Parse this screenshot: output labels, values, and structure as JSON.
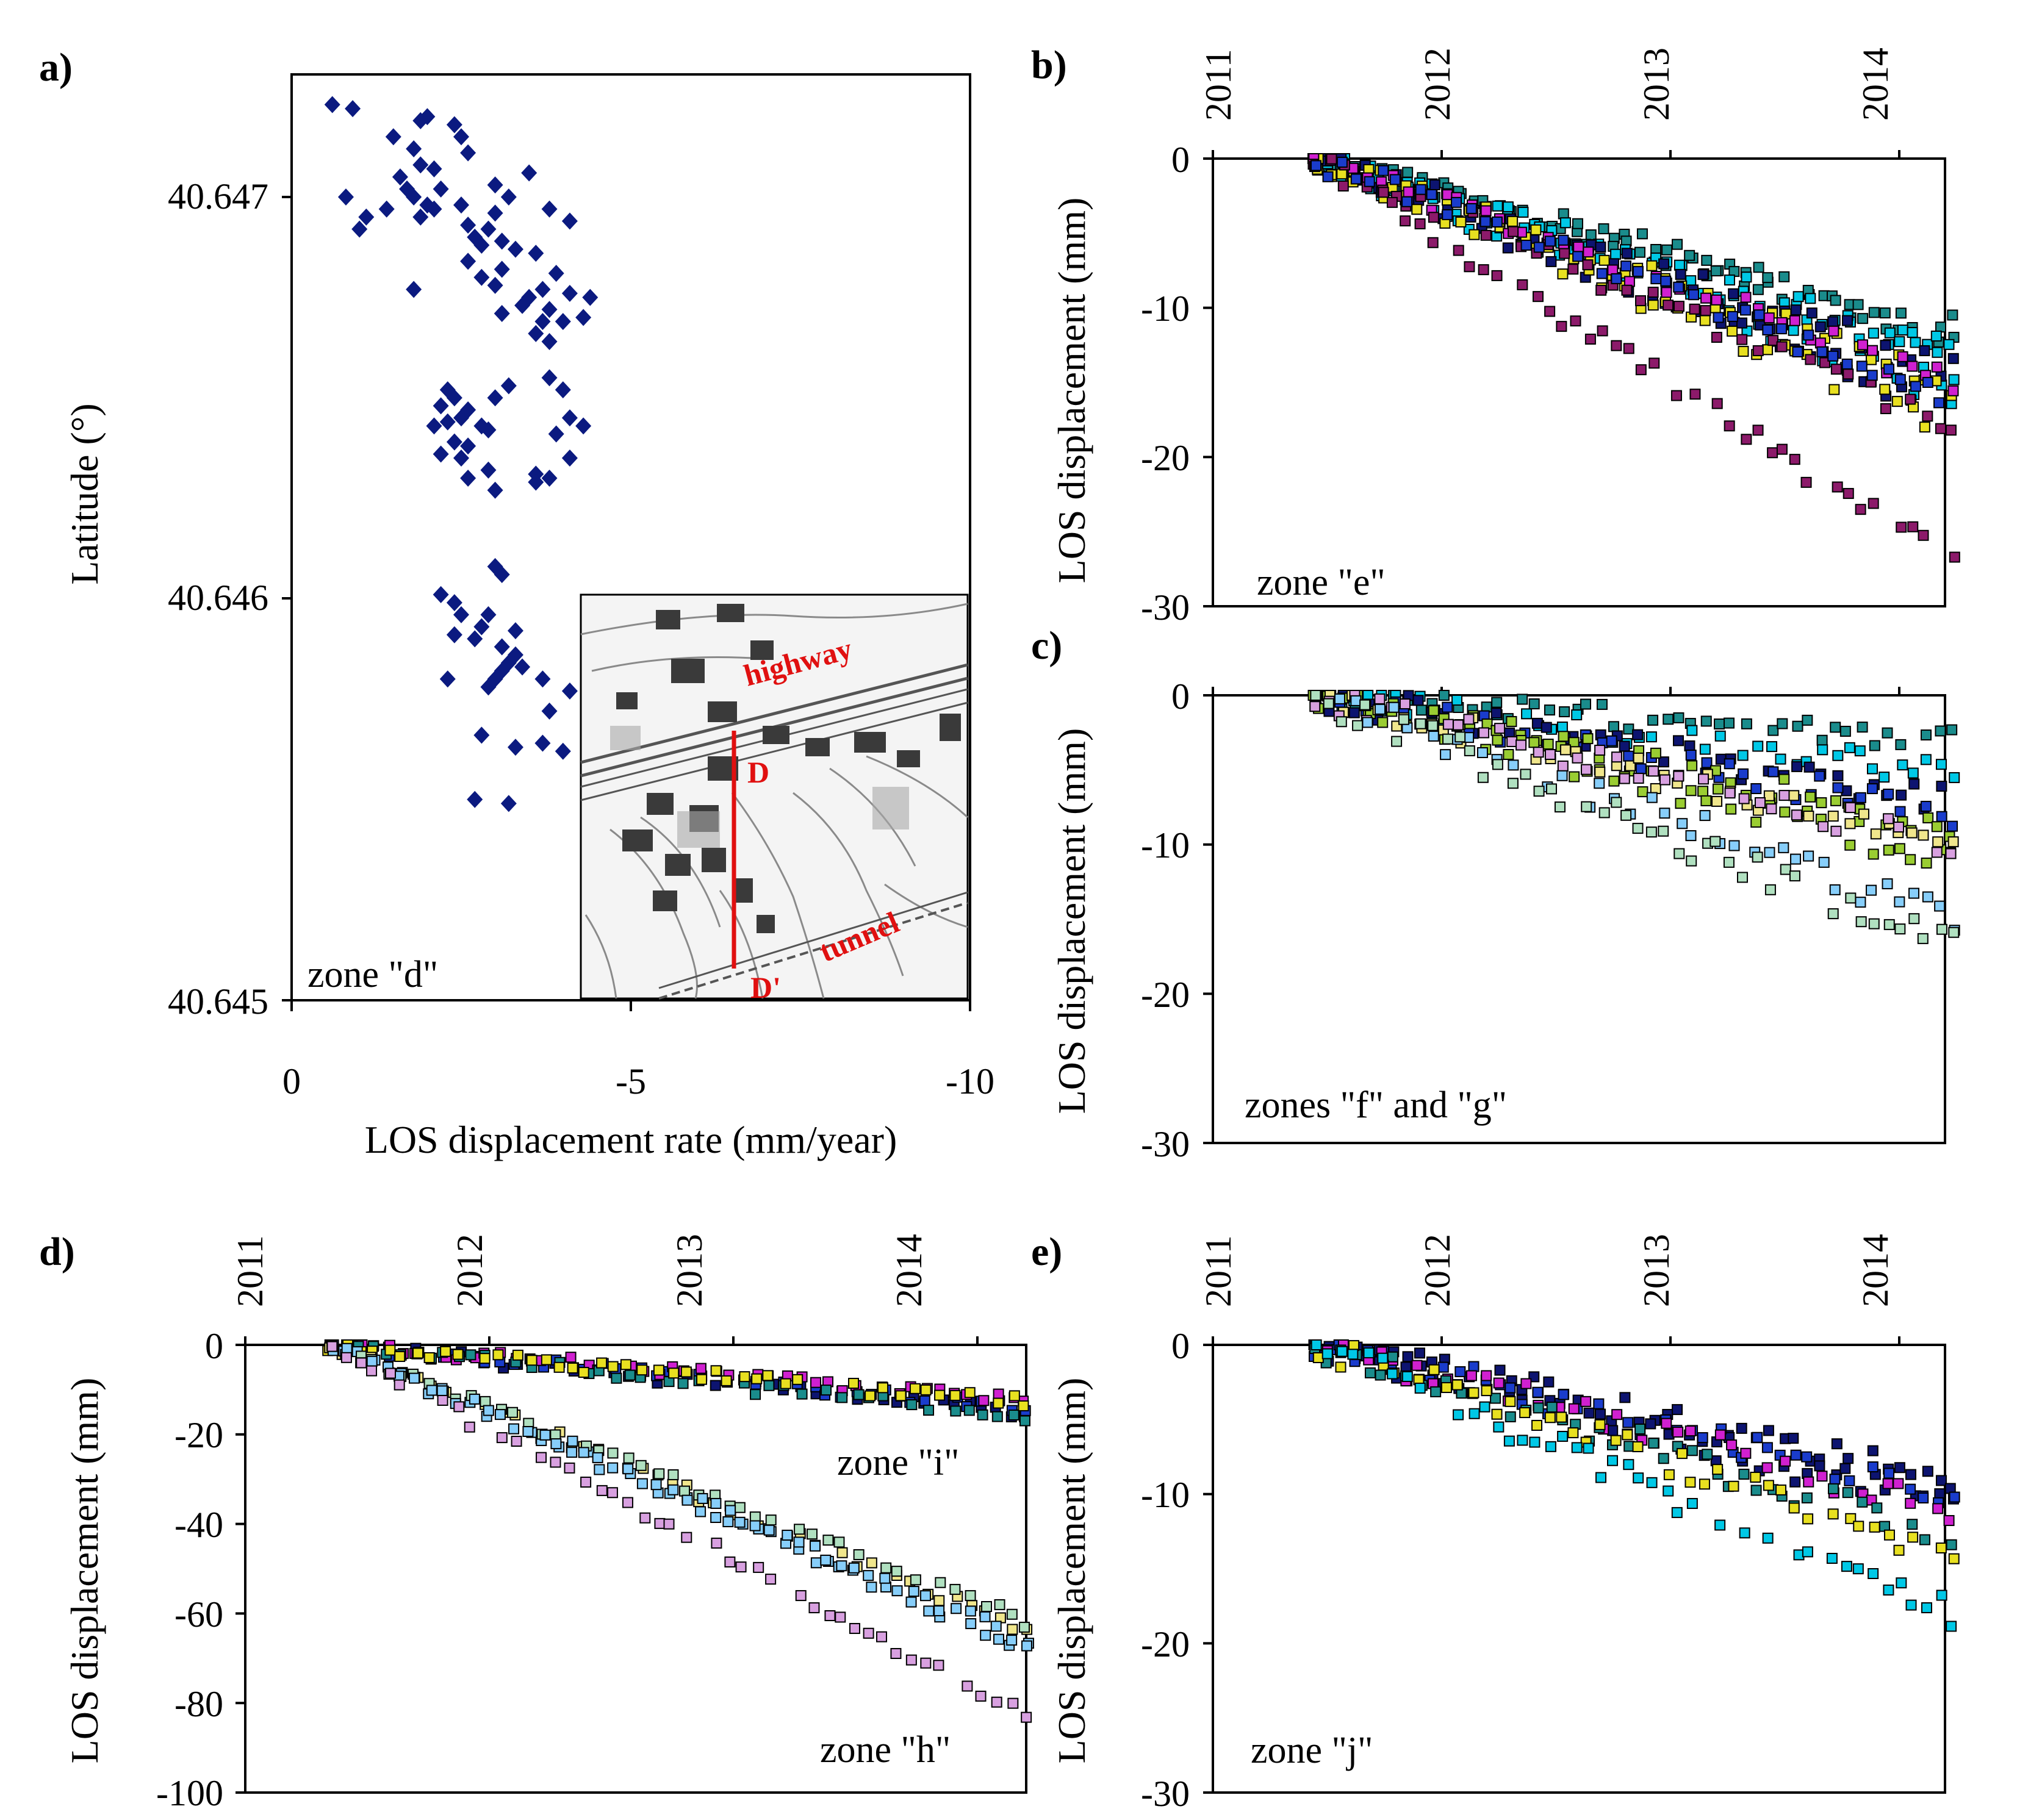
{
  "chart_data": [
    {
      "id": "a",
      "panel_label": "a)",
      "type": "scatter",
      "xlabel": "LOS displacement rate (mm/year)",
      "ylabel": "Latitude (°)",
      "xlim": [
        0,
        -10
      ],
      "ylim": [
        40.645,
        40.6472
      ],
      "xticks": [
        "0",
        "-5",
        "-10"
      ],
      "yticks": [
        "40.645",
        "40.646",
        "40.647"
      ],
      "zone_label": "zone \"d\"",
      "marker": "diamond",
      "color": "#0b1a80",
      "inset": {
        "labels": [
          "highway",
          "D",
          "tunnel",
          "D'"
        ],
        "section_color": "#e01010"
      },
      "points": [
        [
          -0.6,
          40.64723
        ],
        [
          -0.9,
          40.64722
        ],
        [
          -2.0,
          40.6472
        ],
        [
          -1.9,
          40.64719
        ],
        [
          -2.4,
          40.64718
        ],
        [
          -1.5,
          40.64715
        ],
        [
          -2.5,
          40.64715
        ],
        [
          -1.8,
          40.64712
        ],
        [
          -2.6,
          40.64711
        ],
        [
          -1.9,
          40.64708
        ],
        [
          -2.1,
          40.64707
        ],
        [
          -1.6,
          40.64705
        ],
        [
          -3.5,
          40.64706
        ],
        [
          -1.7,
          40.64702
        ],
        [
          -2.2,
          40.64702
        ],
        [
          -3.0,
          40.64703
        ],
        [
          -0.8,
          40.647
        ],
        [
          -1.8,
          40.647
        ],
        [
          -2.0,
          40.64698
        ],
        [
          -3.2,
          40.647
        ],
        [
          -1.4,
          40.64697
        ],
        [
          -2.1,
          40.64697
        ],
        [
          -1.9,
          40.64695
        ],
        [
          -2.5,
          40.64698
        ],
        [
          -3.0,
          40.64696
        ],
        [
          -1.1,
          40.64695
        ],
        [
          -3.8,
          40.64697
        ],
        [
          -2.6,
          40.64693
        ],
        [
          -2.9,
          40.64692
        ],
        [
          -4.1,
          40.64694
        ],
        [
          -1.0,
          40.64692
        ],
        [
          -2.7,
          40.6469
        ],
        [
          -3.1,
          40.64689
        ],
        [
          -2.8,
          40.64688
        ],
        [
          -3.3,
          40.64687
        ],
        [
          -3.6,
          40.64686
        ],
        [
          -2.6,
          40.64684
        ],
        [
          -3.1,
          40.64682
        ],
        [
          -3.9,
          40.64681
        ],
        [
          -2.8,
          40.6468
        ],
        [
          -3.0,
          40.64678
        ],
        [
          -1.8,
          40.64677
        ],
        [
          -3.7,
          40.64677
        ],
        [
          -4.1,
          40.64676
        ],
        [
          -3.5,
          40.64675
        ],
        [
          -4.4,
          40.64675
        ],
        [
          -3.4,
          40.64673
        ],
        [
          -3.8,
          40.64672
        ],
        [
          -3.1,
          40.64671
        ],
        [
          -3.7,
          40.64669
        ],
        [
          -4.0,
          40.64669
        ],
        [
          -3.6,
          40.64666
        ],
        [
          -3.8,
          40.64664
        ],
        [
          -4.3,
          40.6467
        ],
        [
          -3.2,
          40.64653
        ],
        [
          -3.8,
          40.64655
        ],
        [
          -2.3,
          40.64652
        ],
        [
          -4.0,
          40.64652
        ],
        [
          -2.4,
          40.6465
        ],
        [
          -3.0,
          40.6465
        ],
        [
          -2.2,
          40.64648
        ],
        [
          -2.6,
          40.64647
        ],
        [
          -2.5,
          40.64645
        ],
        [
          -4.1,
          40.64645
        ],
        [
          -2.3,
          40.64644
        ],
        [
          -2.1,
          40.64643
        ],
        [
          -2.8,
          40.64643
        ],
        [
          -4.3,
          40.64643
        ],
        [
          -2.9,
          40.64642
        ],
        [
          -3.9,
          40.64641
        ],
        [
          -2.4,
          40.64639
        ],
        [
          -2.6,
          40.64638
        ],
        [
          -2.2,
          40.64636
        ],
        [
          -2.5,
          40.64635
        ],
        [
          -4.1,
          40.64635
        ],
        [
          -2.9,
          40.64632
        ],
        [
          -3.6,
          40.64631
        ],
        [
          -2.6,
          40.6463
        ],
        [
          -3.8,
          40.6463
        ],
        [
          -3.0,
          40.64627
        ],
        [
          -3.6,
          40.64629
        ],
        [
          -3.0,
          40.64608
        ],
        [
          -3.1,
          40.64606
        ],
        [
          -2.2,
          40.64601
        ],
        [
          -2.4,
          40.64599
        ],
        [
          -2.5,
          40.64596
        ],
        [
          -2.9,
          40.64596
        ],
        [
          -2.8,
          40.64593
        ],
        [
          -2.4,
          40.64591
        ],
        [
          -3.3,
          40.64592
        ],
        [
          -2.7,
          40.6459
        ],
        [
          -3.1,
          40.64588
        ],
        [
          -3.3,
          40.64586
        ],
        [
          -3.2,
          40.64584
        ],
        [
          -3.1,
          40.64582
        ],
        [
          -2.3,
          40.6458
        ],
        [
          -3.0,
          40.6458
        ],
        [
          -3.4,
          40.64583
        ],
        [
          -3.7,
          40.6458
        ],
        [
          -2.9,
          40.64578
        ],
        [
          -4.1,
          40.64577
        ],
        [
          -3.8,
          40.64572
        ],
        [
          -2.8,
          40.64566
        ],
        [
          -3.7,
          40.64564
        ],
        [
          -3.3,
          40.64563
        ],
        [
          -4.0,
          40.64562
        ],
        [
          -2.7,
          40.6455
        ],
        [
          -3.2,
          40.64549
        ]
      ]
    },
    {
      "id": "b",
      "panel_label": "b)",
      "type": "scatter",
      "ylabel": "LOS displacement (mm)",
      "xlim": [
        2011,
        2014.2
      ],
      "ylim": [
        -30,
        0
      ],
      "xticks": [
        "2011",
        "2012",
        "2013",
        "2014"
      ],
      "yticks": [
        "0",
        "-10",
        "-20",
        "-30"
      ],
      "zone_label": "zone \"e\"",
      "marker": "square",
      "series_colors": [
        "#0d1470",
        "#00c8e6",
        "#1a8c8c",
        "#e8e020",
        "#d020d0",
        "#8c1a6a",
        "#1a3ccc"
      ],
      "n_dates": 50,
      "date_start": 2011.45,
      "date_end": 2014.23,
      "groups": [
        {
          "color_index": 2,
          "final": -11,
          "noise": 0.7
        },
        {
          "color_index": 2,
          "final": -12,
          "noise": 0.7
        },
        {
          "color_index": 1,
          "final": -14,
          "noise": 0.9
        },
        {
          "color_index": 1,
          "final": -16,
          "noise": 0.9
        },
        {
          "color_index": 1,
          "final": -13,
          "noise": 0.9
        },
        {
          "color_index": 0,
          "final": -17,
          "noise": 0.9
        },
        {
          "color_index": 0,
          "final": -14,
          "noise": 0.9
        },
        {
          "color_index": 3,
          "final": -15,
          "noise": 0.9
        },
        {
          "color_index": 3,
          "final": -18,
          "noise": 0.9
        },
        {
          "color_index": 4,
          "final": -15,
          "noise": 0.9
        },
        {
          "color_index": 5,
          "final": -18,
          "noise": 0.9
        },
        {
          "color_index": 5,
          "final": -27,
          "noise": 0.8
        },
        {
          "color_index": 6,
          "final": -16,
          "noise": 0.9
        }
      ]
    },
    {
      "id": "c",
      "panel_label": "c)",
      "type": "scatter",
      "ylabel": "LOS displacement (mm)",
      "xlim": [
        2011,
        2014.2
      ],
      "ylim": [
        -30,
        0
      ],
      "yticks": [
        "0",
        "-10",
        "-20",
        "-30"
      ],
      "zone_label": "zones \"f\" and \"g\"",
      "marker": "square",
      "series_colors": [
        "#0d1470",
        "#1a3ccc",
        "#00c8e6",
        "#1a8c8c",
        "#9acd32",
        "#f0e68c",
        "#d8a0e0",
        "#87cefa",
        "#b0e0c0"
      ],
      "n_dates": 50,
      "date_start": 2011.45,
      "date_end": 2014.23,
      "groups": [
        {
          "color_index": 3,
          "final": -3,
          "noise": 0.8
        },
        {
          "color_index": 2,
          "final": -5,
          "noise": 1.0
        },
        {
          "color_index": 0,
          "final": -7,
          "noise": 1.0
        },
        {
          "color_index": 1,
          "final": -8,
          "noise": 1.0
        },
        {
          "color_index": 4,
          "final": -9,
          "noise": 1.0
        },
        {
          "color_index": 4,
          "final": -11,
          "noise": 1.0
        },
        {
          "color_index": 5,
          "final": -10,
          "noise": 1.0
        },
        {
          "color_index": 6,
          "final": -10,
          "noise": 1.0
        },
        {
          "color_index": 7,
          "final": -15,
          "noise": 1.2
        },
        {
          "color_index": 8,
          "final": -17,
          "noise": 1.2
        }
      ]
    },
    {
      "id": "d",
      "panel_label": "d)",
      "type": "scatter",
      "ylabel": "LOS displacement (mm)",
      "xlim": [
        2011,
        2014.2
      ],
      "ylim": [
        -100,
        0
      ],
      "xticks": [
        "2011",
        "2012",
        "2013",
        "2014"
      ],
      "yticks": [
        "0",
        "-20",
        "-40",
        "-60",
        "-80",
        "-100"
      ],
      "zone_labels": [
        "zone \"i\"",
        "zone \"h\""
      ],
      "marker": "square",
      "series_colors": [
        "#0d1470",
        "#1a3ccc",
        "#d020d0",
        "#1a8c8c",
        "#e8e020",
        "#f0e68c",
        "#87cefa",
        "#b0e0c0",
        "#d8a0e0"
      ],
      "n_dates": 50,
      "date_start": 2011.35,
      "date_end": 2014.2,
      "groups": [
        {
          "color_index": 0,
          "final": -15,
          "noise": 1.5
        },
        {
          "color_index": 1,
          "final": -14,
          "noise": 1.5
        },
        {
          "color_index": 2,
          "final": -12,
          "noise": 1.5
        },
        {
          "color_index": 3,
          "final": -16,
          "noise": 1.5
        },
        {
          "color_index": 4,
          "final": -13,
          "noise": 1.5
        },
        {
          "color_index": 5,
          "final": -64,
          "noise": 1.5
        },
        {
          "color_index": 6,
          "final": -68,
          "noise": 1.5
        },
        {
          "color_index": 7,
          "final": -62,
          "noise": 1.5
        },
        {
          "color_index": 6,
          "final": -66,
          "noise": 1.5
        },
        {
          "color_index": 8,
          "final": -83,
          "noise": 1.5
        }
      ]
    },
    {
      "id": "e",
      "panel_label": "e)",
      "type": "scatter",
      "ylabel": "LOS displacement (mm)",
      "xlim": [
        2011,
        2014.2
      ],
      "ylim": [
        -30,
        0
      ],
      "xticks": [
        "2011",
        "2012",
        "2013",
        "2014"
      ],
      "yticks": [
        "0",
        "-10",
        "-20",
        "-30"
      ],
      "zone_label": "zone \"j\"",
      "marker": "square",
      "series_colors": [
        "#0d1470",
        "#1a3ccc",
        "#d020d0",
        "#1a8c8c",
        "#e8e020",
        "#00c8e6"
      ],
      "n_dates": 50,
      "date_start": 2011.45,
      "date_end": 2014.23,
      "groups": [
        {
          "color_index": 0,
          "final": -9,
          "noise": 1.0
        },
        {
          "color_index": 0,
          "final": -11,
          "noise": 1.0
        },
        {
          "color_index": 1,
          "final": -10,
          "noise": 1.0
        },
        {
          "color_index": 2,
          "final": -11,
          "noise": 1.0
        },
        {
          "color_index": 3,
          "final": -13,
          "noise": 1.0
        },
        {
          "color_index": 4,
          "final": -14,
          "noise": 1.0
        },
        {
          "color_index": 5,
          "final": -18,
          "noise": 1.0
        }
      ]
    }
  ]
}
